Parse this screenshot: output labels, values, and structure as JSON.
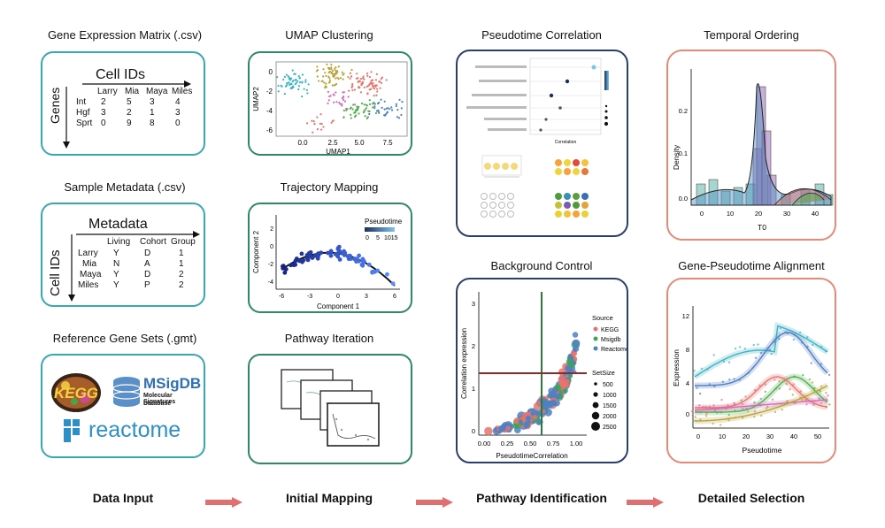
{
  "columns": {
    "data_input": {
      "gene_matrix_title": "Gene Expression Matrix (.csv)",
      "gene_matrix": {
        "col_axis_label": "Cell IDs",
        "row_axis_label": "Genes",
        "headers": [
          "Larry",
          "Mia",
          "Maya",
          "Miles"
        ],
        "rows": [
          {
            "gene": "Int",
            "values": [
              "2",
              "5",
              "3",
              "4"
            ]
          },
          {
            "gene": "Hgf",
            "values": [
              "3",
              "2",
              "1",
              "3"
            ]
          },
          {
            "gene": "Sprt",
            "values": [
              "0",
              "9",
              "8",
              "0"
            ]
          }
        ]
      },
      "metadata_title": "Sample Metadata (.csv)",
      "metadata": {
        "col_axis_label": "Metadata",
        "row_axis_label": "Cell IDs",
        "headers": [
          "Living",
          "Cohort",
          "Group"
        ],
        "rows": [
          {
            "id": "Larry",
            "values": [
              "Y",
              "D",
              "1"
            ]
          },
          {
            "id": "Mia",
            "values": [
              "N",
              "A",
              "1"
            ]
          },
          {
            "id": "Maya",
            "values": [
              "Y",
              "D",
              "2"
            ]
          },
          {
            "id": "Miles",
            "values": [
              "Y",
              "P",
              "2"
            ]
          }
        ]
      },
      "gene_sets_title": "Reference Gene Sets (.gmt)",
      "gene_sets": {
        "kegg": "KEGG",
        "msigdb_name": "MSigDB",
        "msigdb_sub1": "Molecular Signatures",
        "msigdb_sub2": "Database",
        "reactome": "reactome"
      },
      "stage_label": "Data Input"
    },
    "initial_mapping": {
      "umap_title": "UMAP Clustering",
      "umap_xlabel": "UMAP1",
      "umap_ylabel": "UMAP2",
      "umap_xticks": [
        "0.0",
        "2.5",
        "5.0",
        "7.5"
      ],
      "umap_yticks": [
        "0",
        "-2",
        "-4",
        "-6"
      ],
      "trajectory_title": "Trajectory Mapping",
      "traj_xlabel": "Component 1",
      "traj_ylabel": "Component 2",
      "traj_xticks": [
        "-6",
        "-3",
        "0",
        "3",
        "6"
      ],
      "traj_yticks": [
        "2",
        "0",
        "-2",
        "-4"
      ],
      "traj_legend_title": "Pseudotime",
      "traj_legend_ticks": [
        "0",
        "5",
        "1015"
      ],
      "pathway_title": "Pathway Iteration",
      "stage_label": "Initial Mapping"
    },
    "pathway_identification": {
      "pc_title": "Pseudotime Correlation",
      "pc_xlabel": "Correlation",
      "bg_title": "Background Control",
      "bg_xlabel": "PseudotimeCorrelation",
      "bg_ylabel": "Correlation expression",
      "bg_xticks": [
        "0.00",
        "0.25",
        "0.50",
        "0.75",
        "1.00"
      ],
      "bg_yticks": [
        "0",
        "1",
        "2",
        "3"
      ],
      "bg_legend_source_title": "Source",
      "bg_legend_sources": [
        {
          "label": "KEGG",
          "color": "#e8736a"
        },
        {
          "label": "Msigdb",
          "color": "#3aa655"
        },
        {
          "label": "Reactome",
          "color": "#4f7fc4"
        }
      ],
      "bg_legend_size_title": "SetSize",
      "bg_legend_sizes": [
        "500",
        "1000",
        "1500",
        "2000",
        "2500"
      ],
      "stage_label": "Pathway Identification"
    },
    "detailed_selection": {
      "temporal_title": "Temporal Ordering",
      "temporal_xlabel": "T0",
      "temporal_ylabel": "Density",
      "temporal_xticks": [
        "0",
        "10",
        "20",
        "30",
        "40"
      ],
      "temporal_yticks": [
        "0.2",
        "0.1",
        "0.0"
      ],
      "alignment_title": "Gene-Pseudotime Alignment",
      "align_xlabel": "Pseudotime",
      "align_ylabel": "Expression",
      "align_xticks": [
        "0",
        "10",
        "20",
        "30",
        "40",
        "50"
      ],
      "align_yticks": [
        "12",
        "8",
        "4",
        "0"
      ],
      "stage_label": "Detailed Selection"
    }
  },
  "colors": {
    "teal": "#3aa7b4",
    "green": "#2f8a63",
    "navy": "#2c3e6b",
    "salmon": "#e58a77",
    "arrow": "#e26f6f"
  }
}
